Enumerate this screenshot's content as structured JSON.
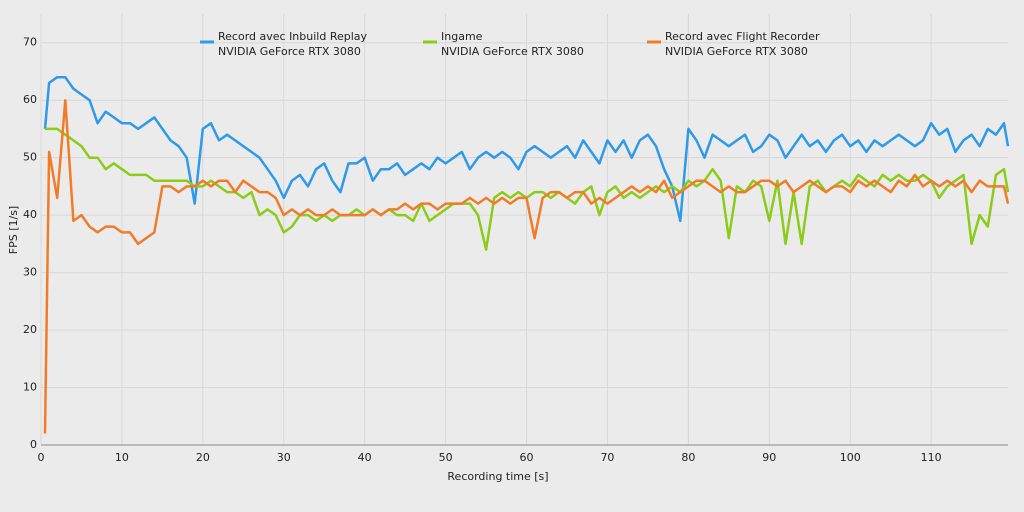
{
  "chart_data": {
    "type": "line",
    "x_label": "Recording time [s]",
    "y_label": "FPS [1/s]",
    "xlim": [
      0,
      119.5
    ],
    "ylim": [
      0,
      75
    ],
    "xticks": [
      0,
      10,
      20,
      30,
      40,
      50,
      60,
      70,
      80,
      90,
      100,
      110
    ],
    "yticks": [
      0,
      10,
      20,
      30,
      40,
      50,
      60,
      70
    ],
    "grid": true,
    "legend": "top",
    "x": [
      0.5,
      1,
      2,
      3,
      4,
      5,
      6,
      7,
      8,
      9,
      10,
      11,
      12,
      13,
      14,
      15,
      16,
      17,
      18,
      19,
      20,
      21,
      22,
      23,
      24,
      25,
      26,
      27,
      28,
      29,
      30,
      31,
      32,
      33,
      34,
      35,
      36,
      37,
      38,
      39,
      40,
      41,
      42,
      43,
      44,
      45,
      46,
      47,
      48,
      49,
      50,
      51,
      52,
      53,
      54,
      55,
      56,
      57,
      58,
      59,
      60,
      61,
      62,
      63,
      64,
      65,
      66,
      67,
      68,
      69,
      70,
      71,
      72,
      73,
      74,
      75,
      76,
      77,
      78,
      79,
      80,
      81,
      82,
      83,
      84,
      85,
      86,
      87,
      88,
      89,
      90,
      91,
      92,
      93,
      94,
      95,
      96,
      97,
      98,
      99,
      100,
      101,
      102,
      103,
      104,
      105,
      106,
      107,
      108,
      109,
      110,
      111,
      112,
      113,
      114,
      115,
      116,
      117,
      118,
      119,
      119.5
    ],
    "series": [
      {
        "name": "Record avec Inbuild Replay",
        "gpu": "NVIDIA GeForce RTX 3080",
        "color": "#2f9ae8",
        "values": [
          55,
          63,
          64,
          64,
          62,
          61,
          60,
          56,
          58,
          57,
          56,
          56,
          55,
          56,
          57,
          55,
          53,
          52,
          50,
          42,
          55,
          56,
          53,
          54,
          53,
          52,
          51,
          50,
          48,
          46,
          43,
          46,
          47,
          45,
          48,
          49,
          46,
          44,
          49,
          49,
          50,
          46,
          48,
          48,
          49,
          47,
          48,
          49,
          48,
          50,
          49,
          50,
          51,
          48,
          50,
          51,
          50,
          51,
          50,
          48,
          51,
          52,
          51,
          50,
          51,
          52,
          50,
          53,
          51,
          49,
          53,
          51,
          53,
          50,
          53,
          54,
          52,
          48,
          45,
          39,
          55,
          53,
          50,
          54,
          53,
          52,
          53,
          54,
          51,
          52,
          54,
          53,
          50,
          52,
          54,
          52,
          53,
          51,
          53,
          54,
          52,
          53,
          51,
          53,
          52,
          53,
          54,
          53,
          52,
          53,
          56,
          54,
          55,
          51,
          53,
          54,
          52,
          55,
          54,
          56,
          52
        ]
      },
      {
        "name": "Ingame",
        "gpu": "NVIDIA GeForce RTX 3080",
        "color": "#8acc17",
        "values": [
          55,
          55,
          55,
          54,
          53,
          52,
          50,
          50,
          48,
          49,
          48,
          47,
          47,
          47,
          46,
          46,
          46,
          46,
          46,
          45,
          45,
          46,
          45,
          44,
          44,
          43,
          44,
          40,
          41,
          40,
          37,
          38,
          40,
          40,
          39,
          40,
          39,
          40,
          40,
          41,
          40,
          41,
          40,
          41,
          40,
          40,
          39,
          42,
          39,
          40,
          41,
          42,
          42,
          42,
          40,
          34,
          43,
          44,
          43,
          44,
          43,
          44,
          44,
          43,
          44,
          43,
          42,
          44,
          45,
          40,
          44,
          45,
          43,
          44,
          43,
          44,
          45,
          44,
          45,
          44,
          46,
          45,
          46,
          48,
          46,
          36,
          45,
          44,
          46,
          45,
          39,
          46,
          35,
          44,
          35,
          45,
          46,
          44,
          45,
          46,
          45,
          47,
          46,
          45,
          47,
          46,
          47,
          46,
          46,
          47,
          46,
          43,
          45,
          46,
          47,
          35,
          40,
          38,
          47,
          48,
          44
        ]
      },
      {
        "name": "Record avec Flight Recorder",
        "gpu": "NVIDIA GeForce RTX 3080",
        "color": "#f07c2a",
        "values": [
          2,
          51,
          43,
          60,
          39,
          40,
          38,
          37,
          38,
          38,
          37,
          37,
          35,
          36,
          37,
          45,
          45,
          44,
          45,
          45,
          46,
          45,
          46,
          46,
          44,
          46,
          45,
          44,
          44,
          43,
          40,
          41,
          40,
          41,
          40,
          40,
          41,
          40,
          40,
          40,
          40,
          41,
          40,
          41,
          41,
          42,
          41,
          42,
          42,
          41,
          42,
          42,
          42,
          43,
          42,
          43,
          42,
          43,
          42,
          43,
          43,
          36,
          43,
          44,
          44,
          43,
          44,
          44,
          42,
          43,
          42,
          43,
          44,
          45,
          44,
          45,
          44,
          46,
          43,
          44,
          45,
          46,
          46,
          45,
          44,
          45,
          44,
          44,
          45,
          46,
          46,
          45,
          46,
          44,
          45,
          46,
          45,
          44,
          45,
          45,
          44,
          46,
          45,
          46,
          45,
          44,
          46,
          45,
          47,
          45,
          46,
          45,
          46,
          45,
          46,
          44,
          46,
          45,
          45,
          45,
          42
        ]
      }
    ]
  }
}
